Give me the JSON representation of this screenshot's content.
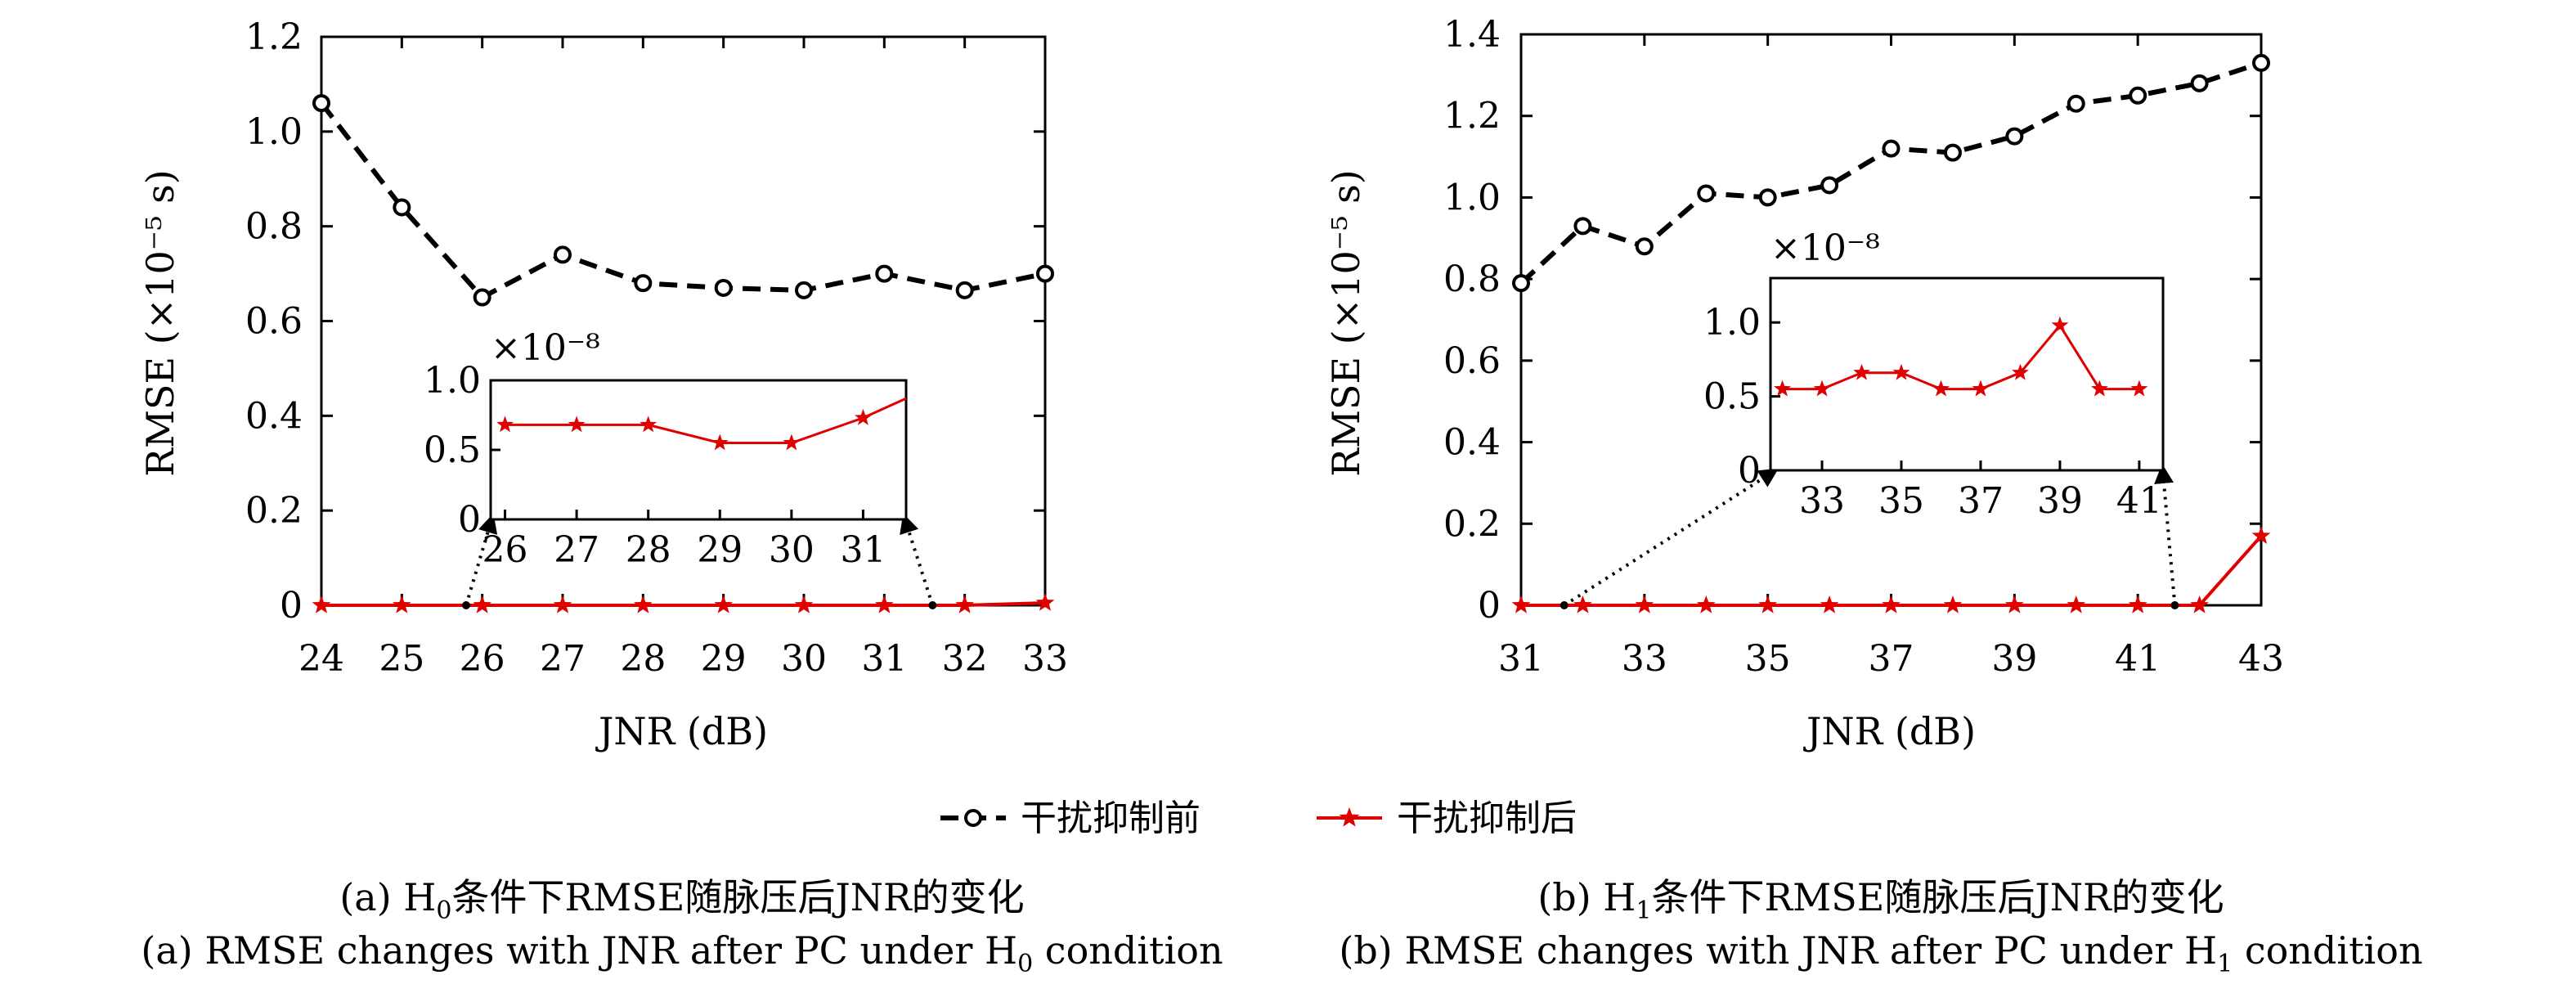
{
  "legend": {
    "before_label": "干扰抑制前",
    "after_label": "干扰抑制后"
  },
  "colors": {
    "before": "#000000",
    "after": "#e00000",
    "axis": "#000000"
  },
  "captions": {
    "a_cn_prefix": "(a) H",
    "a_cn_sub": "0",
    "a_cn_suffix": "条件下RMSE随脉压后JNR的变化",
    "a_en_prefix": "(a) RMSE changes with JNR after PC under H",
    "a_en_sub": "0",
    "a_en_suffix": " condition",
    "b_cn_prefix": "(b) H",
    "b_cn_sub": "1",
    "b_cn_suffix": "条件下RMSE随脉压后JNR的变化",
    "b_en_prefix": "(b) RMSE changes with JNR after PC under H",
    "b_en_sub": "1",
    "b_en_suffix": " condition"
  },
  "chart_data": [
    {
      "type": "line",
      "xlabel": "JNR (dB)",
      "ylabel": "RMSE (×10⁻⁵ s)",
      "xlim": [
        24,
        33
      ],
      "ylim": [
        0,
        1.2
      ],
      "x_ticks": [
        "24",
        "25",
        "26",
        "27",
        "28",
        "29",
        "30",
        "31",
        "32",
        "33"
      ],
      "y_ticks": [
        "0",
        "0.2",
        "0.4",
        "0.6",
        "0.8",
        "1.0",
        "1.2"
      ],
      "x": [
        24,
        25,
        26,
        27,
        28,
        29,
        30,
        31,
        32,
        33
      ],
      "series": [
        {
          "name": "干扰抑制前",
          "marker": "circle",
          "style": "dashed",
          "values": [
            1.06,
            0.84,
            0.65,
            0.74,
            0.68,
            0.67,
            0.665,
            0.7,
            0.665,
            0.7
          ]
        },
        {
          "name": "干扰抑制后",
          "marker": "star",
          "style": "solid",
          "values": [
            0,
            0,
            0,
            0,
            0,
            0,
            0,
            0,
            0,
            0.005
          ]
        }
      ],
      "inset": {
        "multiplier": "×10⁻⁸",
        "xlim": [
          25.8,
          31.6
        ],
        "ylim": [
          0,
          1.0
        ],
        "x_ticks": [
          "26",
          "27",
          "28",
          "29",
          "30",
          "31"
        ],
        "y_ticks": [
          "0",
          "0.5",
          "1.0"
        ],
        "x": [
          26,
          27,
          28,
          29,
          30,
          31,
          31.6
        ],
        "values": [
          0.68,
          0.68,
          0.68,
          0.55,
          0.55,
          0.73,
          0.87
        ],
        "zoom_range": [
          25.8,
          31.6
        ]
      }
    },
    {
      "type": "line",
      "xlabel": "JNR (dB)",
      "ylabel": "RMSE (×10⁻⁵ s)",
      "xlim": [
        31,
        43
      ],
      "ylim": [
        0,
        1.4
      ],
      "x_ticks": [
        "31",
        "33",
        "35",
        "37",
        "39",
        "41",
        "43"
      ],
      "y_ticks": [
        "0",
        "0.2",
        "0.4",
        "0.6",
        "0.8",
        "1.0",
        "1.2",
        "1.4"
      ],
      "x": [
        31,
        32,
        33,
        34,
        35,
        36,
        37,
        38,
        39,
        40,
        41,
        42,
        43
      ],
      "series": [
        {
          "name": "干扰抑制前",
          "marker": "circle",
          "style": "dashed",
          "values": [
            0.79,
            0.93,
            0.88,
            1.01,
            1.0,
            1.03,
            1.12,
            1.11,
            1.15,
            1.23,
            1.25,
            1.28,
            1.33
          ]
        },
        {
          "name": "干扰抑制后",
          "marker": "star",
          "style": "solid",
          "values": [
            0,
            0,
            0,
            0,
            0,
            0,
            0,
            0,
            0,
            0,
            0,
            0,
            0.17
          ]
        }
      ],
      "inset": {
        "multiplier": "×10⁻⁸",
        "xlim": [
          31.7,
          41.6
        ],
        "ylim": [
          0,
          1.3
        ],
        "x_ticks": [
          "33",
          "35",
          "37",
          "39",
          "41"
        ],
        "y_ticks": [
          "0",
          "0.5",
          "1.0"
        ],
        "x": [
          32,
          33,
          34,
          35,
          36,
          37,
          38,
          39,
          40,
          41
        ],
        "values": [
          0.55,
          0.55,
          0.66,
          0.66,
          0.55,
          0.55,
          0.66,
          0.98,
          0.55,
          0.55
        ],
        "zoom_range": [
          31.7,
          41.6
        ]
      }
    }
  ]
}
